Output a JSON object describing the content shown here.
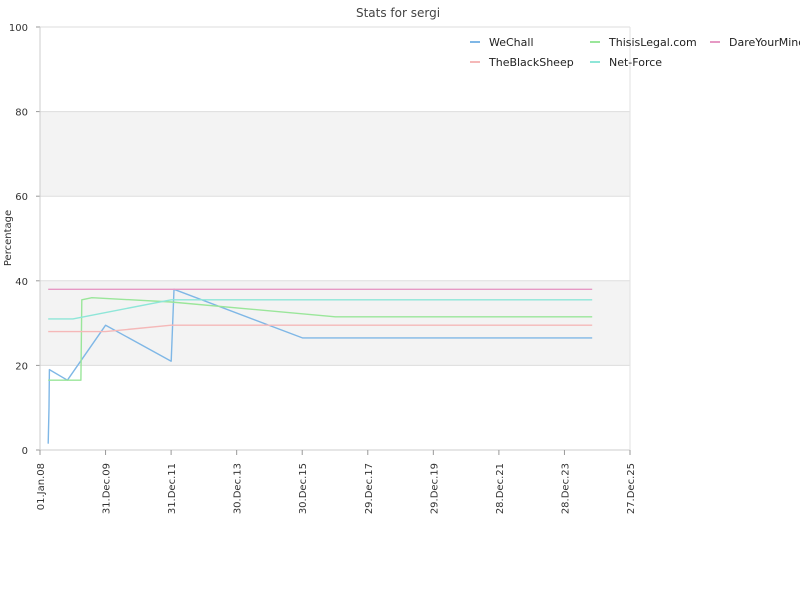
{
  "chart_data": {
    "type": "line",
    "title": "Stats for sergi",
    "ylabel": "Percentage",
    "xlabel": "",
    "ylim": [
      0,
      100
    ],
    "yticks": [
      0,
      20,
      40,
      60,
      80,
      100
    ],
    "xlim": [
      "2008-01-01",
      "2025-12-27"
    ],
    "xticks": [
      {
        "date": "2008-01-01",
        "label": "01.Jan.08"
      },
      {
        "date": "2009-12-31",
        "label": "31.Dec.09"
      },
      {
        "date": "2011-12-31",
        "label": "31.Dec.11"
      },
      {
        "date": "2013-12-30",
        "label": "30.Dec.13"
      },
      {
        "date": "2015-12-30",
        "label": "30.Dec.15"
      },
      {
        "date": "2017-12-29",
        "label": "29.Dec.17"
      },
      {
        "date": "2019-12-29",
        "label": "29.Dec.19"
      },
      {
        "date": "2021-12-28",
        "label": "28.Dec.21"
      },
      {
        "date": "2023-12-28",
        "label": "28.Dec.23"
      },
      {
        "date": "2025-12-27",
        "label": "27.Dec.25"
      }
    ],
    "grid": true,
    "banded_background": true,
    "legend_position": "top-right",
    "series": [
      {
        "name": "WeChall",
        "color": "#7fb7e6",
        "points": [
          [
            "2008-04-01",
            1.5
          ],
          [
            "2008-04-10",
            10
          ],
          [
            "2008-04-15",
            19
          ],
          [
            "2008-11-01",
            16.5
          ],
          [
            "2010-01-01",
            29.5
          ],
          [
            "2012-01-01",
            21
          ],
          [
            "2012-02-01",
            38
          ],
          [
            "2016-01-01",
            26.5
          ],
          [
            "2024-11-01",
            26.5
          ]
        ]
      },
      {
        "name": "ThisisLegal.com",
        "color": "#9ae69a",
        "points": [
          [
            "2008-04-01",
            16.5
          ],
          [
            "2009-04-01",
            16.5
          ],
          [
            "2009-04-10",
            35.5
          ],
          [
            "2009-08-01",
            36
          ],
          [
            "2012-01-01",
            35
          ],
          [
            "2017-01-01",
            31.5
          ],
          [
            "2024-11-01",
            31.5
          ]
        ]
      },
      {
        "name": "DareYourMind",
        "color": "#e699c4",
        "points": [
          [
            "2008-04-01",
            38
          ],
          [
            "2024-11-01",
            38
          ]
        ]
      },
      {
        "name": "TheBlackSheep",
        "color": "#f5b8b8",
        "points": [
          [
            "2008-04-01",
            28
          ],
          [
            "2010-01-01",
            28
          ],
          [
            "2012-01-01",
            29.5
          ],
          [
            "2024-11-01",
            29.5
          ]
        ]
      },
      {
        "name": "Net-Force",
        "color": "#8ee6d8",
        "points": [
          [
            "2008-04-01",
            31
          ],
          [
            "2009-01-01",
            31
          ],
          [
            "2012-01-01",
            35.5
          ],
          [
            "2024-11-01",
            35.5
          ]
        ]
      }
    ]
  }
}
